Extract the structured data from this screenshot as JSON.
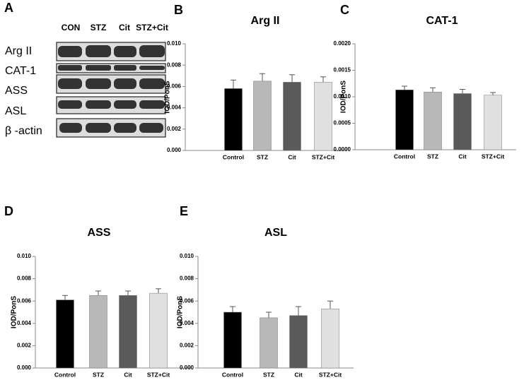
{
  "figure": {
    "panel_labels": [
      "A",
      "B",
      "C",
      "D",
      "E"
    ]
  },
  "blot": {
    "columns": [
      "CON",
      "STZ",
      "Cit",
      "STZ+Cit"
    ],
    "rows": [
      "Arg II",
      "CAT-1",
      "ASS",
      "ASL",
      "β -actin"
    ]
  },
  "chart_data": [
    {
      "type": "bar",
      "title": "Arg II",
      "y_label": "IOD/PonS",
      "categories": [
        "Control",
        "STZ",
        "Cit",
        "STZ+Cit"
      ],
      "values": [
        0.0058,
        0.0065,
        0.0064,
        0.0064
      ],
      "errors": [
        0.0008,
        0.0007,
        0.0007,
        0.0005
      ],
      "colors": [
        "#000000",
        "#b8b8b8",
        "#5a5a5a",
        "#e0e0e0"
      ],
      "ylim": [
        0,
        0.01
      ],
      "yticks": [
        {
          "value": 0,
          "label": "0.000"
        },
        {
          "value": 0.002,
          "label": "0.002"
        },
        {
          "value": 0.004,
          "label": "0.004"
        },
        {
          "value": 0.006,
          "label": "0.006"
        },
        {
          "value": 0.008,
          "label": "0.008"
        },
        {
          "value": 0.01,
          "label": "0.010"
        }
      ]
    },
    {
      "type": "bar",
      "title": "CAT-1",
      "y_label": "IOD/PonS",
      "categories": [
        "Control",
        "STZ",
        "Cit",
        "STZ+Cit"
      ],
      "values": [
        0.00113,
        0.00109,
        0.00106,
        0.00103
      ],
      "errors": [
        7e-05,
        8e-05,
        8e-05,
        5e-05
      ],
      "colors": [
        "#000000",
        "#b8b8b8",
        "#5a5a5a",
        "#e0e0e0"
      ],
      "ylim": [
        0,
        0.002
      ],
      "yticks": [
        {
          "value": 0,
          "label": "0.0000"
        },
        {
          "value": 0.0005,
          "label": "0.0005"
        },
        {
          "value": 0.001,
          "label": "0.0010"
        },
        {
          "value": 0.0015,
          "label": "0.0015"
        },
        {
          "value": 0.002,
          "label": "0.0020"
        }
      ]
    },
    {
      "type": "bar",
      "title": "ASS",
      "y_label": "IOD/PonS",
      "categories": [
        "Control",
        "STZ",
        "Cit",
        "STZ+Cit"
      ],
      "values": [
        0.0061,
        0.0065,
        0.0065,
        0.0067
      ],
      "errors": [
        0.0004,
        0.0004,
        0.0004,
        0.0004
      ],
      "colors": [
        "#000000",
        "#b8b8b8",
        "#5a5a5a",
        "#e0e0e0"
      ],
      "ylim": [
        0,
        0.01
      ],
      "yticks": [
        {
          "value": 0,
          "label": "0.000"
        },
        {
          "value": 0.002,
          "label": "0.002"
        },
        {
          "value": 0.004,
          "label": "0.004"
        },
        {
          "value": 0.006,
          "label": "0.006"
        },
        {
          "value": 0.008,
          "label": "0.008"
        },
        {
          "value": 0.01,
          "label": "0.010"
        }
      ]
    },
    {
      "type": "bar",
      "title": "ASL",
      "y_label": "IOD/PonS",
      "categories": [
        "Control",
        "STZ",
        "Cit",
        "STZ+Cit"
      ],
      "values": [
        0.005,
        0.0045,
        0.0047,
        0.0053
      ],
      "errors": [
        0.0005,
        0.0005,
        0.0008,
        0.0007
      ],
      "colors": [
        "#000000",
        "#b8b8b8",
        "#5a5a5a",
        "#e0e0e0"
      ],
      "ylim": [
        0,
        0.01
      ],
      "yticks": [
        {
          "value": 0,
          "label": "0.000"
        },
        {
          "value": 0.002,
          "label": "0.002"
        },
        {
          "value": 0.004,
          "label": "0.004"
        },
        {
          "value": 0.006,
          "label": "0.006"
        },
        {
          "value": 0.008,
          "label": "0.008"
        },
        {
          "value": 0.01,
          "label": "0.010"
        }
      ]
    }
  ]
}
